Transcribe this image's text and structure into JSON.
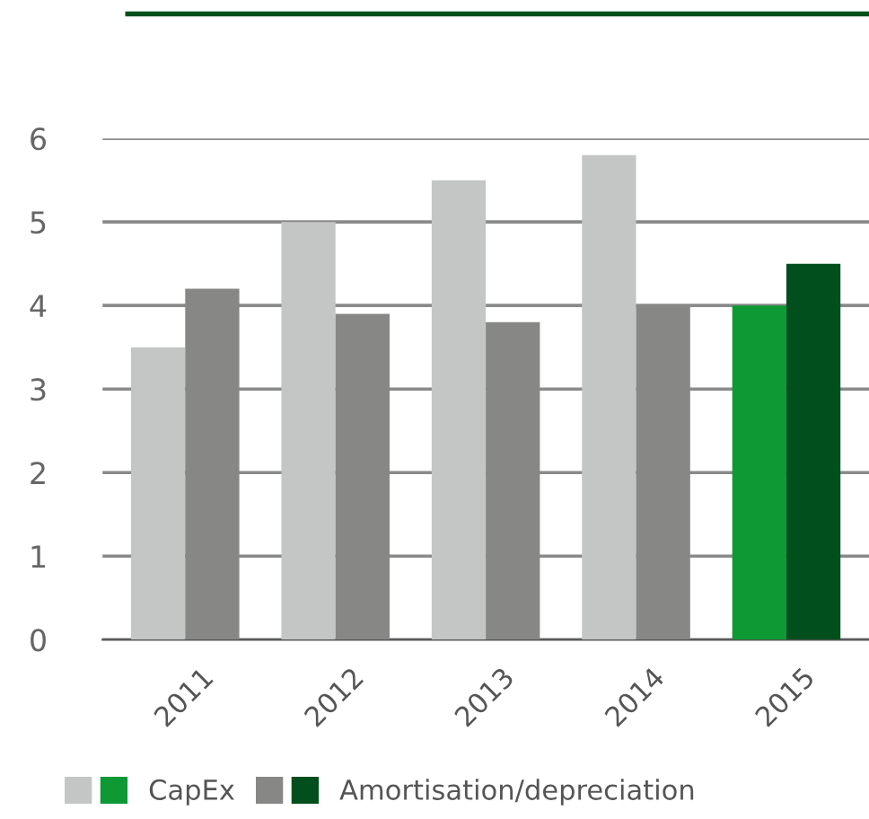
{
  "chart_data": {
    "type": "bar",
    "categories": [
      "2011",
      "2012",
      "2013",
      "2014",
      "2015"
    ],
    "series": [
      {
        "name": "CapEx",
        "colors": [
          "#c4c6c5",
          "#c4c6c5",
          "#c4c6c5",
          "#c4c6c5",
          "#0e9935"
        ],
        "values": [
          3.5,
          5.0,
          5.5,
          5.8,
          4.0
        ]
      },
      {
        "name": "Amortisation/depreciation",
        "colors": [
          "#878786",
          "#878786",
          "#878786",
          "#878786",
          "#004f1d"
        ],
        "values": [
          4.2,
          3.9,
          3.8,
          4.0,
          4.5
        ]
      }
    ],
    "ylim": [
      0,
      6
    ],
    "yticks": [
      0,
      1,
      2,
      3,
      4,
      5,
      6
    ],
    "grid": "y",
    "legend": "bottom"
  }
}
